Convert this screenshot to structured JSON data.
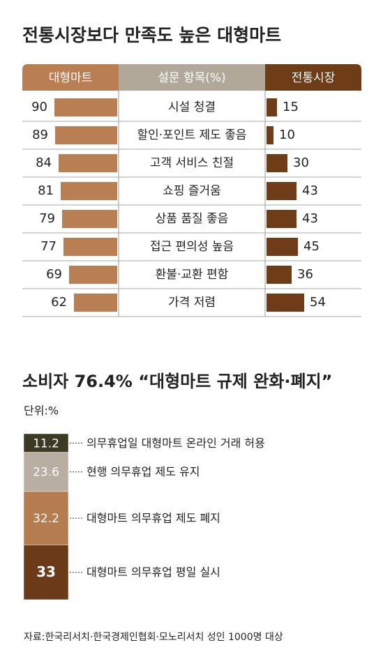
{
  "chart_data": [
    {
      "type": "butterfly",
      "title": "전통시장보다 만족도 높은 대형마트",
      "category_header": "설문 항목(%)",
      "categories": [
        "시설 청결",
        "할인·포인트 제도 좋음",
        "고객 서비스 친절",
        "쇼핑 즐거움",
        "상품 품질 좋음",
        "접근 편의성 높음",
        "환불·교환 편함",
        "가격 저렴"
      ],
      "series": [
        {
          "name": "대형마트",
          "color": "#b97e52",
          "values": [
            90,
            89,
            84,
            81,
            79,
            77,
            69,
            62
          ]
        },
        {
          "name": "전통시장",
          "color": "#6e3d18",
          "values": [
            15,
            10,
            30,
            43,
            43,
            45,
            36,
            54
          ]
        }
      ],
      "header_color": "#b1a899"
    },
    {
      "type": "stacked",
      "title": "소비자 76.4% “대형마트 규제 완화·폐지”",
      "unit": "단위:%",
      "series": [
        {
          "name": "의무휴업일 대형마트 온라인 거래 허용",
          "color": "#3d3a24",
          "values": [
            11.2
          ]
        },
        {
          "name": "현행 의무휴업 제도 유지",
          "color": "#b8ae a1",
          "values": [
            23.6
          ]
        },
        {
          "name": "대형마트 의무휴업 제도 폐지",
          "color": "#b57c50",
          "values": [
            32.2
          ]
        },
        {
          "name": "대형마트 의무휴업 평일 실시",
          "color": "#6b3a18",
          "values": [
            33
          ]
        }
      ]
    }
  ],
  "source": "자료:한국리서치·한국경제인협회·모노리서치 성인 1000명 대상"
}
